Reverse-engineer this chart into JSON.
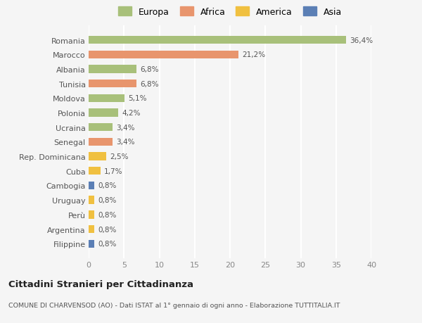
{
  "categories": [
    "Filippine",
    "Argentina",
    "Perù",
    "Uruguay",
    "Cambogia",
    "Cuba",
    "Rep. Dominicana",
    "Senegal",
    "Ucraina",
    "Polonia",
    "Moldova",
    "Tunisia",
    "Albania",
    "Marocco",
    "Romania"
  ],
  "values": [
    0.8,
    0.8,
    0.8,
    0.8,
    0.8,
    1.7,
    2.5,
    3.4,
    3.4,
    4.2,
    5.1,
    6.8,
    6.8,
    21.2,
    36.4
  ],
  "labels": [
    "0,8%",
    "0,8%",
    "0,8%",
    "0,8%",
    "0,8%",
    "1,7%",
    "2,5%",
    "3,4%",
    "3,4%",
    "4,2%",
    "5,1%",
    "6,8%",
    "6,8%",
    "21,2%",
    "36,4%"
  ],
  "colors": [
    "#5b7fb5",
    "#f0c040",
    "#f0c040",
    "#f0c040",
    "#5b7fb5",
    "#f0c040",
    "#f0c040",
    "#e8956d",
    "#a8c07a",
    "#a8c07a",
    "#a8c07a",
    "#e8956d",
    "#a8c07a",
    "#e8956d",
    "#a8c07a"
  ],
  "legend": [
    {
      "label": "Europa",
      "color": "#a8c07a"
    },
    {
      "label": "Africa",
      "color": "#e8956d"
    },
    {
      "label": "America",
      "color": "#f0c040"
    },
    {
      "label": "Asia",
      "color": "#5b7fb5"
    }
  ],
  "xlim": [
    0,
    40
  ],
  "xticks": [
    0,
    5,
    10,
    15,
    20,
    25,
    30,
    35,
    40
  ],
  "title": "Cittadini Stranieri per Cittadinanza",
  "subtitle": "COMUNE DI CHARVENSOD (AO) - Dati ISTAT al 1° gennaio di ogni anno - Elaborazione TUTTITALIA.IT",
  "background_color": "#f5f5f5",
  "grid_color": "#ffffff",
  "bar_height": 0.55
}
